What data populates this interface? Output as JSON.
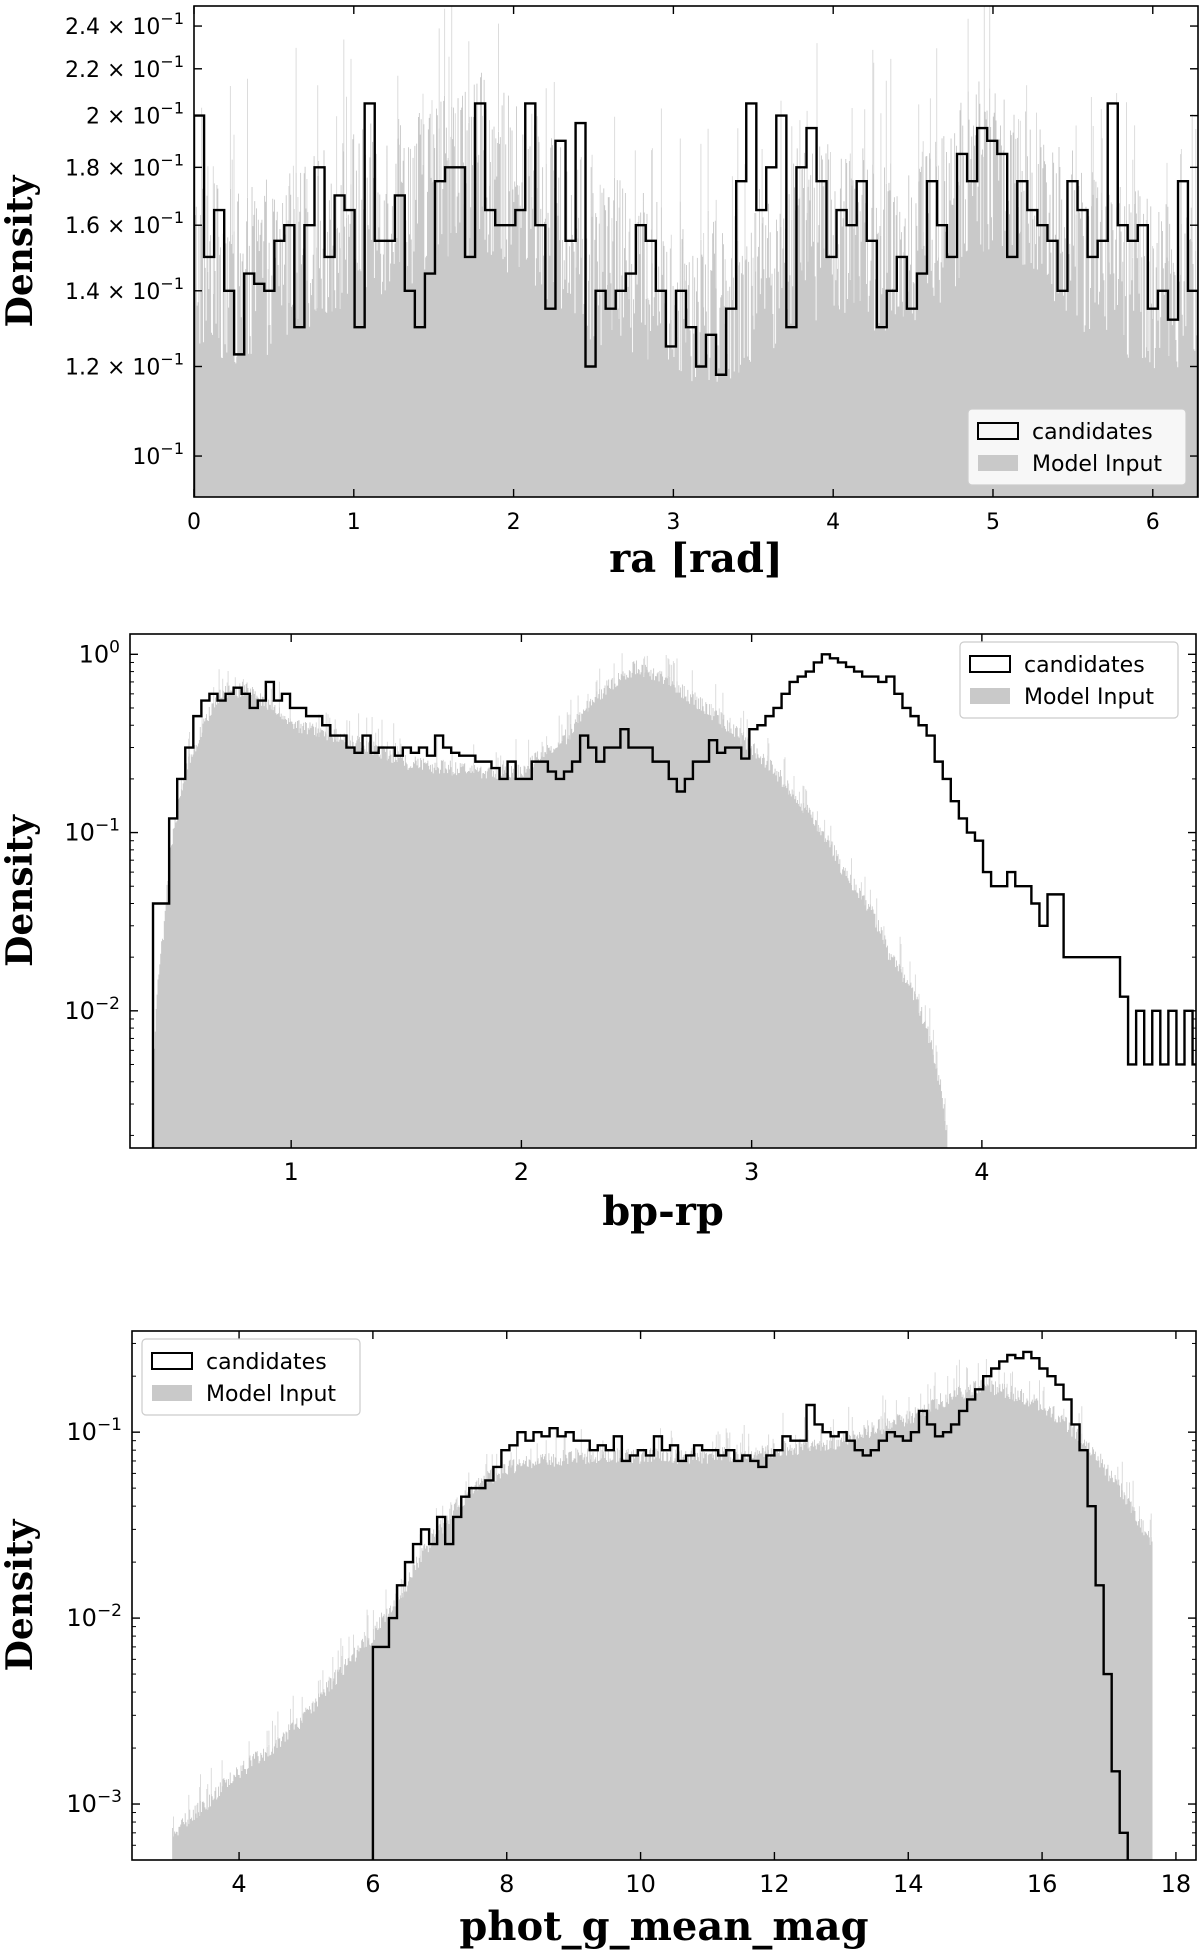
{
  "chart_data": [
    {
      "type": "histogram",
      "xlabel": "ra [rad]",
      "ylabel": "Density",
      "xlim": [
        0,
        6.283
      ],
      "ylim": [
        0.092,
        0.25
      ],
      "yscale": "log",
      "x_ticks": [
        {
          "v": 0,
          "label": "0"
        },
        {
          "v": 1,
          "label": "1"
        },
        {
          "v": 2,
          "label": "2"
        },
        {
          "v": 3,
          "label": "3"
        },
        {
          "v": 4,
          "label": "4"
        },
        {
          "v": 5,
          "label": "5"
        },
        {
          "v": 6,
          "label": "6"
        }
      ],
      "y_ticks": [
        {
          "v": 0.1,
          "label": "10",
          "exp": "−1"
        },
        {
          "v": 0.12,
          "label": "1.2 × 10",
          "exp": "−1"
        },
        {
          "v": 0.14,
          "label": "1.4 × 10",
          "exp": "−1"
        },
        {
          "v": 0.16,
          "label": "1.6 × 10",
          "exp": "−1"
        },
        {
          "v": 0.18,
          "label": "1.8 × 10",
          "exp": "−1"
        },
        {
          "v": 0.2,
          "label": "2 × 10",
          "exp": "−1"
        },
        {
          "v": 0.22,
          "label": "2.2 × 10",
          "exp": "−1"
        },
        {
          "v": 0.24,
          "label": "2.4 × 10",
          "exp": "−1"
        }
      ],
      "legend": {
        "location": "lower-right",
        "entries": [
          "candidates",
          "Model Input"
        ]
      },
      "series": [
        {
          "name": "candidates",
          "style": "step-outline",
          "bin_edges": [
            0,
            0.063,
            0.126,
            0.189,
            0.251,
            0.314,
            0.377,
            0.44,
            0.503,
            0.565,
            0.628,
            0.691,
            0.754,
            0.817,
            0.88,
            0.942,
            1.005,
            1.068,
            1.131,
            1.194,
            1.257,
            1.319,
            1.382,
            1.445,
            1.508,
            1.571,
            1.634,
            1.696,
            1.759,
            1.822,
            1.885,
            1.948,
            2.011,
            2.073,
            2.136,
            2.199,
            2.262,
            2.325,
            2.388,
            2.45,
            2.513,
            2.576,
            2.639,
            2.702,
            2.765,
            2.827,
            2.89,
            2.953,
            3.016,
            3.079,
            3.142,
            3.204,
            3.267,
            3.33,
            3.393,
            3.456,
            3.519,
            3.581,
            3.644,
            3.707,
            3.77,
            3.833,
            3.896,
            3.958,
            4.021,
            4.084,
            4.147,
            4.21,
            4.273,
            4.335,
            4.398,
            4.461,
            4.524,
            4.587,
            4.65,
            4.712,
            4.775,
            4.838,
            4.901,
            4.964,
            5.027,
            5.089,
            5.152,
            5.215,
            5.278,
            5.341,
            5.404,
            5.466,
            5.529,
            5.592,
            5.655,
            5.718,
            5.781,
            5.843,
            5.906,
            5.969,
            6.032,
            6.095,
            6.158,
            6.22,
            6.283
          ],
          "values": [
            0.2,
            0.15,
            0.165,
            0.14,
            0.123,
            0.145,
            0.142,
            0.14,
            0.155,
            0.16,
            0.13,
            0.16,
            0.18,
            0.15,
            0.17,
            0.165,
            0.13,
            0.205,
            0.155,
            0.155,
            0.17,
            0.14,
            0.13,
            0.145,
            0.175,
            0.18,
            0.18,
            0.15,
            0.205,
            0.165,
            0.16,
            0.16,
            0.165,
            0.205,
            0.16,
            0.135,
            0.19,
            0.155,
            0.197,
            0.12,
            0.14,
            0.135,
            0.14,
            0.145,
            0.16,
            0.155,
            0.14,
            0.125,
            0.14,
            0.13,
            0.12,
            0.128,
            0.118,
            0.135,
            0.175,
            0.205,
            0.165,
            0.18,
            0.2,
            0.13,
            0.18,
            0.195,
            0.175,
            0.15,
            0.165,
            0.16,
            0.175,
            0.155,
            0.13,
            0.14,
            0.15,
            0.135,
            0.145,
            0.175,
            0.16,
            0.15,
            0.185,
            0.175,
            0.195,
            0.19,
            0.185,
            0.15,
            0.175,
            0.165,
            0.16,
            0.155,
            0.14,
            0.175,
            0.165,
            0.15,
            0.155,
            0.205,
            0.16,
            0.155,
            0.16,
            0.135,
            0.14,
            0.132,
            0.175,
            0.14
          ]
        },
        {
          "name": "Model Input",
          "style": "filled-fine-histogram",
          "envelope_x": [
            0,
            0.3,
            0.7,
            1.0,
            1.3,
            1.6,
            1.8,
            2.0,
            2.3,
            2.6,
            2.9,
            3.2,
            3.5,
            3.8,
            4.1,
            4.4,
            4.7,
            4.9,
            5.1,
            5.4,
            5.7,
            6.0,
            6.283
          ],
          "envelope_y": [
            0.15,
            0.145,
            0.155,
            0.165,
            0.17,
            0.18,
            0.185,
            0.175,
            0.16,
            0.15,
            0.145,
            0.14,
            0.145,
            0.16,
            0.16,
            0.155,
            0.165,
            0.185,
            0.18,
            0.165,
            0.15,
            0.145,
            0.145
          ]
        }
      ]
    },
    {
      "type": "histogram",
      "xlabel": "bp-rp",
      "ylabel": "Density",
      "xlim": [
        0.3,
        4.93
      ],
      "ylim": [
        0.0017,
        1.3
      ],
      "yscale": "log",
      "x_ticks": [
        {
          "v": 1,
          "label": "1"
        },
        {
          "v": 2,
          "label": "2"
        },
        {
          "v": 3,
          "label": "3"
        },
        {
          "v": 4,
          "label": "4"
        }
      ],
      "y_ticks": [
        {
          "v": 0.01,
          "label": "10",
          "exp": "−2"
        },
        {
          "v": 0.1,
          "label": "10",
          "exp": "−1"
        },
        {
          "v": 1,
          "label": "10",
          "exp": "0"
        }
      ],
      "legend": {
        "location": "upper-right",
        "entries": [
          "candidates",
          "Model Input"
        ]
      },
      "series": [
        {
          "name": "candidates",
          "style": "step-outline",
          "bin_start": 0.4,
          "bin_width": 0.035,
          "values": [
            0.04,
            0.04,
            0.12,
            0.2,
            0.3,
            0.45,
            0.55,
            0.6,
            0.55,
            0.6,
            0.65,
            0.6,
            0.5,
            0.55,
            0.7,
            0.55,
            0.6,
            0.5,
            0.5,
            0.45,
            0.45,
            0.4,
            0.35,
            0.35,
            0.3,
            0.28,
            0.35,
            0.28,
            0.3,
            0.3,
            0.27,
            0.3,
            0.28,
            0.3,
            0.27,
            0.35,
            0.3,
            0.28,
            0.27,
            0.27,
            0.25,
            0.25,
            0.23,
            0.2,
            0.25,
            0.2,
            0.2,
            0.25,
            0.25,
            0.22,
            0.2,
            0.22,
            0.25,
            0.35,
            0.3,
            0.25,
            0.3,
            0.3,
            0.38,
            0.3,
            0.3,
            0.3,
            0.25,
            0.25,
            0.2,
            0.17,
            0.2,
            0.25,
            0.25,
            0.33,
            0.28,
            0.3,
            0.3,
            0.26,
            0.38,
            0.4,
            0.45,
            0.5,
            0.6,
            0.7,
            0.75,
            0.8,
            0.9,
            1.0,
            0.95,
            0.9,
            0.85,
            0.8,
            0.75,
            0.75,
            0.7,
            0.75,
            0.6,
            0.5,
            0.45,
            0.4,
            0.35,
            0.25,
            0.2,
            0.15,
            0.12,
            0.1,
            0.09,
            0.06,
            0.05,
            0.05,
            0.06,
            0.05,
            0.05,
            0.04,
            0.03,
            0.045,
            0.045,
            0.02,
            0.02,
            0.02,
            0.02,
            0.02,
            0.02,
            0.02,
            0.012,
            0.005,
            0.01,
            0.005,
            0.01,
            0.005,
            0.01,
            0.005,
            0.01,
            0.005,
            0.01,
            0.005,
            0.01,
            0.005
          ]
        },
        {
          "name": "Model Input",
          "style": "filled-fine-histogram",
          "envelope_x": [
            0.4,
            0.45,
            0.5,
            0.6,
            0.7,
            0.8,
            1.0,
            1.2,
            1.5,
            1.8,
            2.0,
            2.2,
            2.4,
            2.5,
            2.6,
            2.8,
            3.0,
            3.2,
            3.4,
            3.6,
            3.8,
            3.85
          ],
          "envelope_y": [
            0.003,
            0.03,
            0.12,
            0.35,
            0.6,
            0.65,
            0.4,
            0.35,
            0.25,
            0.22,
            0.22,
            0.35,
            0.7,
            0.85,
            0.75,
            0.5,
            0.3,
            0.15,
            0.06,
            0.02,
            0.005,
            0.002
          ]
        }
      ]
    },
    {
      "type": "histogram",
      "xlabel": "phot_g_mean_mag",
      "ylabel": "Density",
      "xlim": [
        2.4,
        18.3
      ],
      "ylim": [
        0.0005,
        0.35
      ],
      "yscale": "log",
      "x_ticks": [
        {
          "v": 4,
          "label": "4"
        },
        {
          "v": 6,
          "label": "6"
        },
        {
          "v": 8,
          "label": "8"
        },
        {
          "v": 10,
          "label": "10"
        },
        {
          "v": 12,
          "label": "12"
        },
        {
          "v": 14,
          "label": "14"
        },
        {
          "v": 16,
          "label": "16"
        },
        {
          "v": 18,
          "label": "18"
        }
      ],
      "y_ticks": [
        {
          "v": 0.001,
          "label": "10",
          "exp": "−3"
        },
        {
          "v": 0.01,
          "label": "10",
          "exp": "−2"
        },
        {
          "v": 0.1,
          "label": "10",
          "exp": "−1"
        }
      ],
      "legend": {
        "location": "upper-left",
        "entries": [
          "candidates",
          "Model Input"
        ]
      },
      "series": [
        {
          "name": "candidates",
          "style": "step-outline",
          "bin_start": 6.0,
          "bin_width": 0.12,
          "values": [
            0.007,
            0.007,
            0.01,
            0.015,
            0.02,
            0.025,
            0.03,
            0.025,
            0.035,
            0.025,
            0.035,
            0.045,
            0.05,
            0.05,
            0.055,
            0.065,
            0.08,
            0.085,
            0.1,
            0.09,
            0.1,
            0.095,
            0.105,
            0.095,
            0.1,
            0.09,
            0.09,
            0.08,
            0.085,
            0.08,
            0.095,
            0.07,
            0.075,
            0.08,
            0.075,
            0.095,
            0.08,
            0.085,
            0.07,
            0.075,
            0.085,
            0.08,
            0.08,
            0.075,
            0.08,
            0.07,
            0.075,
            0.07,
            0.065,
            0.075,
            0.08,
            0.095,
            0.09,
            0.09,
            0.14,
            0.11,
            0.1,
            0.095,
            0.1,
            0.09,
            0.08,
            0.075,
            0.08,
            0.09,
            0.1,
            0.095,
            0.09,
            0.1,
            0.13,
            0.11,
            0.095,
            0.1,
            0.11,
            0.13,
            0.15,
            0.17,
            0.2,
            0.22,
            0.24,
            0.26,
            0.25,
            0.27,
            0.25,
            0.22,
            0.2,
            0.18,
            0.15,
            0.11,
            0.08,
            0.04,
            0.015,
            0.005,
            0.0015,
            0.0007
          ]
        },
        {
          "name": "Model Input",
          "style": "filled-fine-histogram",
          "envelope_x": [
            3.0,
            3.5,
            4.0,
            4.5,
            5.0,
            5.5,
            6.0,
            6.5,
            7.0,
            7.5,
            8.0,
            9.0,
            10.0,
            11.0,
            12.0,
            13.0,
            14.0,
            14.7,
            15.2,
            16.0,
            16.5,
            17.0,
            17.4,
            17.65
          ],
          "envelope_y": [
            0.0007,
            0.001,
            0.0015,
            0.002,
            0.003,
            0.005,
            0.008,
            0.015,
            0.03,
            0.05,
            0.065,
            0.075,
            0.075,
            0.075,
            0.08,
            0.09,
            0.12,
            0.16,
            0.18,
            0.14,
            0.1,
            0.06,
            0.035,
            0.025
          ]
        }
      ]
    }
  ]
}
